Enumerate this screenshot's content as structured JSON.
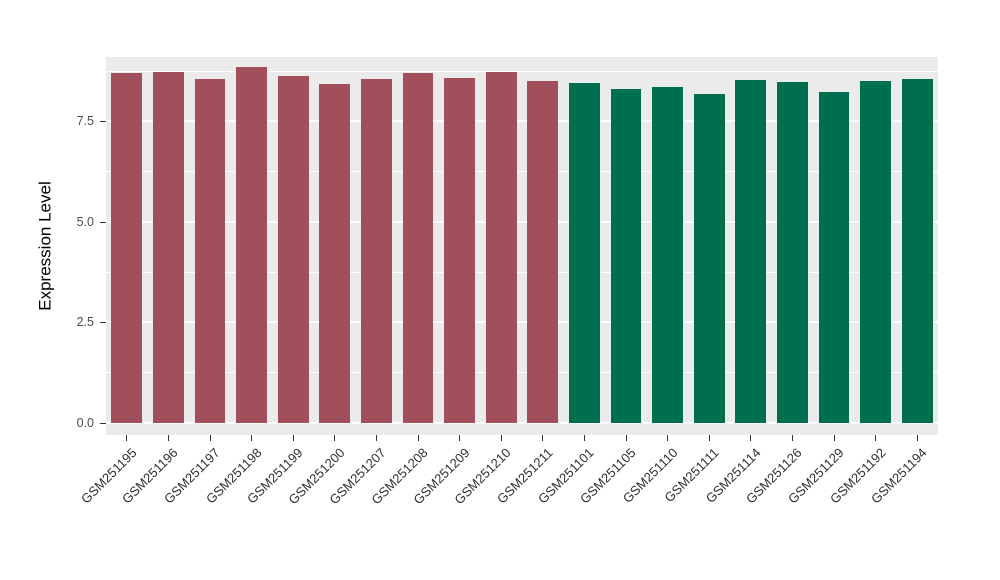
{
  "chart_data": {
    "type": "bar",
    "title": "",
    "xlabel": "",
    "ylabel": "Expression Level",
    "ylim": [
      0,
      9.1
    ],
    "yticks": [
      0,
      2.5,
      5,
      7.5
    ],
    "ytick_labels": [
      "0.0",
      "2.5",
      "5.0",
      "7.5"
    ],
    "yticks_minor": [
      1.25,
      3.75,
      6.25,
      8.75
    ],
    "grid": true,
    "legend": "none",
    "panel_bg": "#EBEBEB",
    "grid_color": "#FFFFFF",
    "categories": [
      "GSM251195",
      "GSM251196",
      "GSM251197",
      "GSM251198",
      "GSM251199",
      "GSM251200",
      "GSM251207",
      "GSM251208",
      "GSM251209",
      "GSM251210",
      "GSM251211",
      "GSM251101",
      "GSM251105",
      "GSM251110",
      "GSM251111",
      "GSM251114",
      "GSM251126",
      "GSM251129",
      "GSM251192",
      "GSM251194"
    ],
    "values": [
      8.7,
      8.72,
      8.55,
      8.85,
      8.62,
      8.42,
      8.55,
      8.7,
      8.58,
      8.72,
      8.5,
      8.45,
      8.3,
      8.35,
      8.18,
      8.52,
      8.48,
      8.22,
      8.5,
      8.55
    ],
    "groups": [
      "group1",
      "group1",
      "group1",
      "group1",
      "group1",
      "group1",
      "group1",
      "group1",
      "group1",
      "group1",
      "group1",
      "group2",
      "group2",
      "group2",
      "group2",
      "group2",
      "group2",
      "group2",
      "group2",
      "group2"
    ],
    "group_colors": {
      "group1": "#A14F5A",
      "group2": "#006F50"
    }
  }
}
